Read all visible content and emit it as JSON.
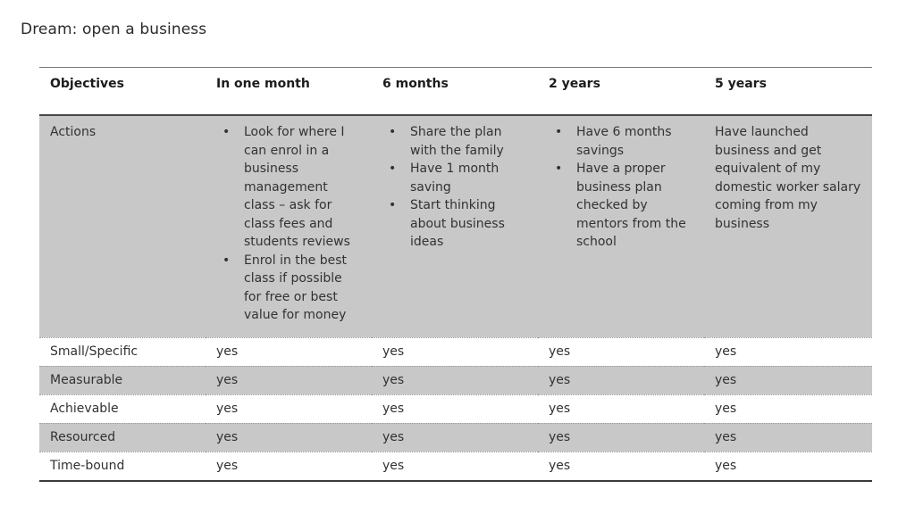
{
  "title": "Dream: open a business",
  "colors": {
    "row_shade": "#c8c8c8",
    "text_primary": "#2e2e2e",
    "border_strong": "#3a3a3a",
    "border_light": "#777777"
  },
  "table": {
    "headers": [
      "Objectives",
      "In one month",
      "6 months",
      "2 years",
      "5 years"
    ],
    "actions": {
      "label": "Actions",
      "one_month_bullets": [
        "Look for where I can enrol in a business management class – ask for class fees and students reviews",
        "Enrol in the best class if possible for free or best value for money"
      ],
      "six_months_bullets": [
        "Share the plan with the family",
        "Have 1 month saving",
        "Start thinking about business ideas"
      ],
      "two_years_bullets": [
        "Have 6 months savings",
        "Have a proper business plan checked by mentors from the school"
      ],
      "five_years_text": "Have launched business and get equivalent of my domestic worker salary coming from my business"
    },
    "criteria": [
      {
        "label": "Small/Specific",
        "values": [
          "yes",
          "yes",
          "yes",
          "yes"
        ]
      },
      {
        "label": "Measurable",
        "values": [
          "yes",
          "yes",
          "yes",
          "yes"
        ]
      },
      {
        "label": "Achievable",
        "values": [
          "yes",
          "yes",
          "yes",
          "yes"
        ]
      },
      {
        "label": "Resourced",
        "values": [
          "yes",
          "yes",
          "yes",
          "yes"
        ]
      },
      {
        "label": "Time-bound",
        "values": [
          "yes",
          "yes",
          "yes",
          "yes"
        ]
      }
    ]
  }
}
